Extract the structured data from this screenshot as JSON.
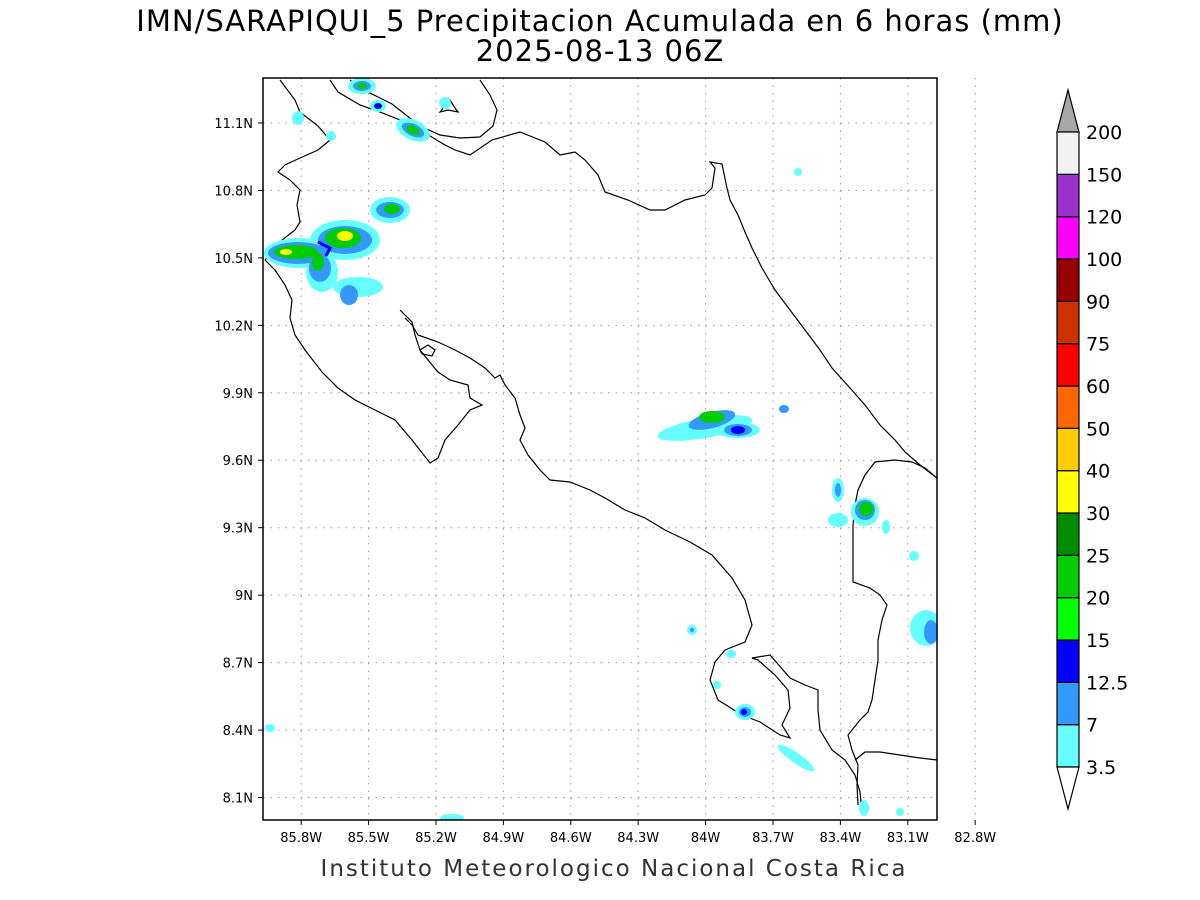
{
  "title_line1": "IMN/SARAPIQUI_5 Precipitacion Acumulada en 6 horas (mm)",
  "title_line2": "2025-08-13 06Z",
  "footer": "Instituto Meteorologico Nacional Costa Rica",
  "map": {
    "lon_range": [
      -85.97,
      -82.97
    ],
    "lat_range": [
      8.0,
      11.3
    ],
    "lon_ticks": [
      {
        "value": -85.8,
        "label": "85.8W"
      },
      {
        "value": -85.5,
        "label": "85.5W"
      },
      {
        "value": -85.2,
        "label": "85.2W"
      },
      {
        "value": -84.9,
        "label": "84.9W"
      },
      {
        "value": -84.6,
        "label": "84.6W"
      },
      {
        "value": -84.3,
        "label": "84.3W"
      },
      {
        "value": -84.0,
        "label": "84W"
      },
      {
        "value": -83.7,
        "label": "83.7W"
      },
      {
        "value": -83.4,
        "label": "83.4W"
      },
      {
        "value": -83.1,
        "label": "83.1W"
      },
      {
        "value": -82.8,
        "label": "82.8W"
      }
    ],
    "lat_ticks": [
      {
        "value": 11.1,
        "label": "11.1N"
      },
      {
        "value": 10.8,
        "label": "10.8N"
      },
      {
        "value": 10.5,
        "label": "10.5N"
      },
      {
        "value": 10.2,
        "label": "10.2N"
      },
      {
        "value": 9.9,
        "label": "9.9N"
      },
      {
        "value": 9.6,
        "label": "9.6N"
      },
      {
        "value": 9.3,
        "label": "9.3N"
      },
      {
        "value": 9.0,
        "label": "9N"
      },
      {
        "value": 8.7,
        "label": "8.7N"
      },
      {
        "value": 8.4,
        "label": "8.4N"
      },
      {
        "value": 8.1,
        "label": "8.1N"
      }
    ],
    "grid": "dotted"
  },
  "colorbar": {
    "levels": [
      {
        "label": "3.5",
        "color": "#66ffff"
      },
      {
        "label": "7",
        "color": "#3399ff"
      },
      {
        "label": "12.5",
        "color": "#0000ff"
      },
      {
        "label": "15",
        "color": "#00ff00"
      },
      {
        "label": "20",
        "color": "#00cc00"
      },
      {
        "label": "25",
        "color": "#008c00"
      },
      {
        "label": "30",
        "color": "#ffff00"
      },
      {
        "label": "40",
        "color": "#ffcc00"
      },
      {
        "label": "50",
        "color": "#ff6600"
      },
      {
        "label": "60",
        "color": "#ff0000"
      },
      {
        "label": "75",
        "color": "#cc3300"
      },
      {
        "label": "90",
        "color": "#990000"
      },
      {
        "label": "100",
        "color": "#ff00ff"
      },
      {
        "label": "120",
        "color": "#9933cc"
      },
      {
        "label": "150",
        "color": "#f2f2f2"
      },
      {
        "label": "200",
        "color": ""
      }
    ],
    "top_triangle_color": "#a6a6a6",
    "bottom_triangle_color": "#ffffff"
  }
}
